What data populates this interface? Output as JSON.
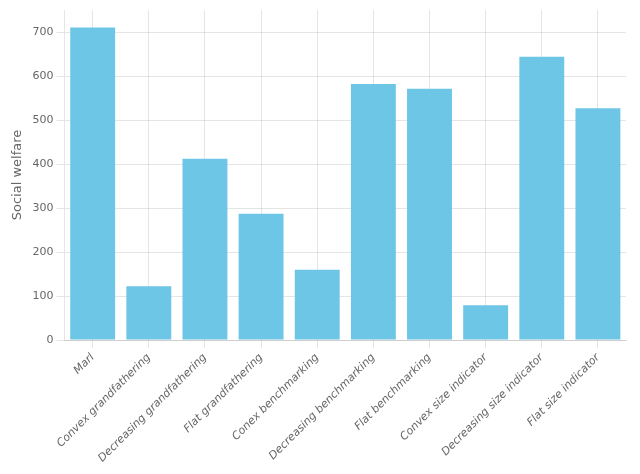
{
  "chart_data": {
    "type": "bar",
    "categories": [
      "Marl",
      "Convex grandfathering",
      "Decreasing grandfathering",
      "Flat grandfathering",
      "Conex benchmarking",
      "Decreasing benchmarking",
      "Flat benchmarking",
      "Convex size indicator",
      "Decreasing size indicator",
      "Flat size indicator"
    ],
    "values": [
      710,
      122,
      412,
      287,
      160,
      582,
      571,
      79,
      644,
      527
    ],
    "color": "#6ec6e6",
    "ylabel": "Social welfare",
    "ylim": [
      0,
      750
    ],
    "yticks": [
      0,
      100,
      200,
      300,
      400,
      500,
      600,
      700
    ],
    "grid": true
  }
}
